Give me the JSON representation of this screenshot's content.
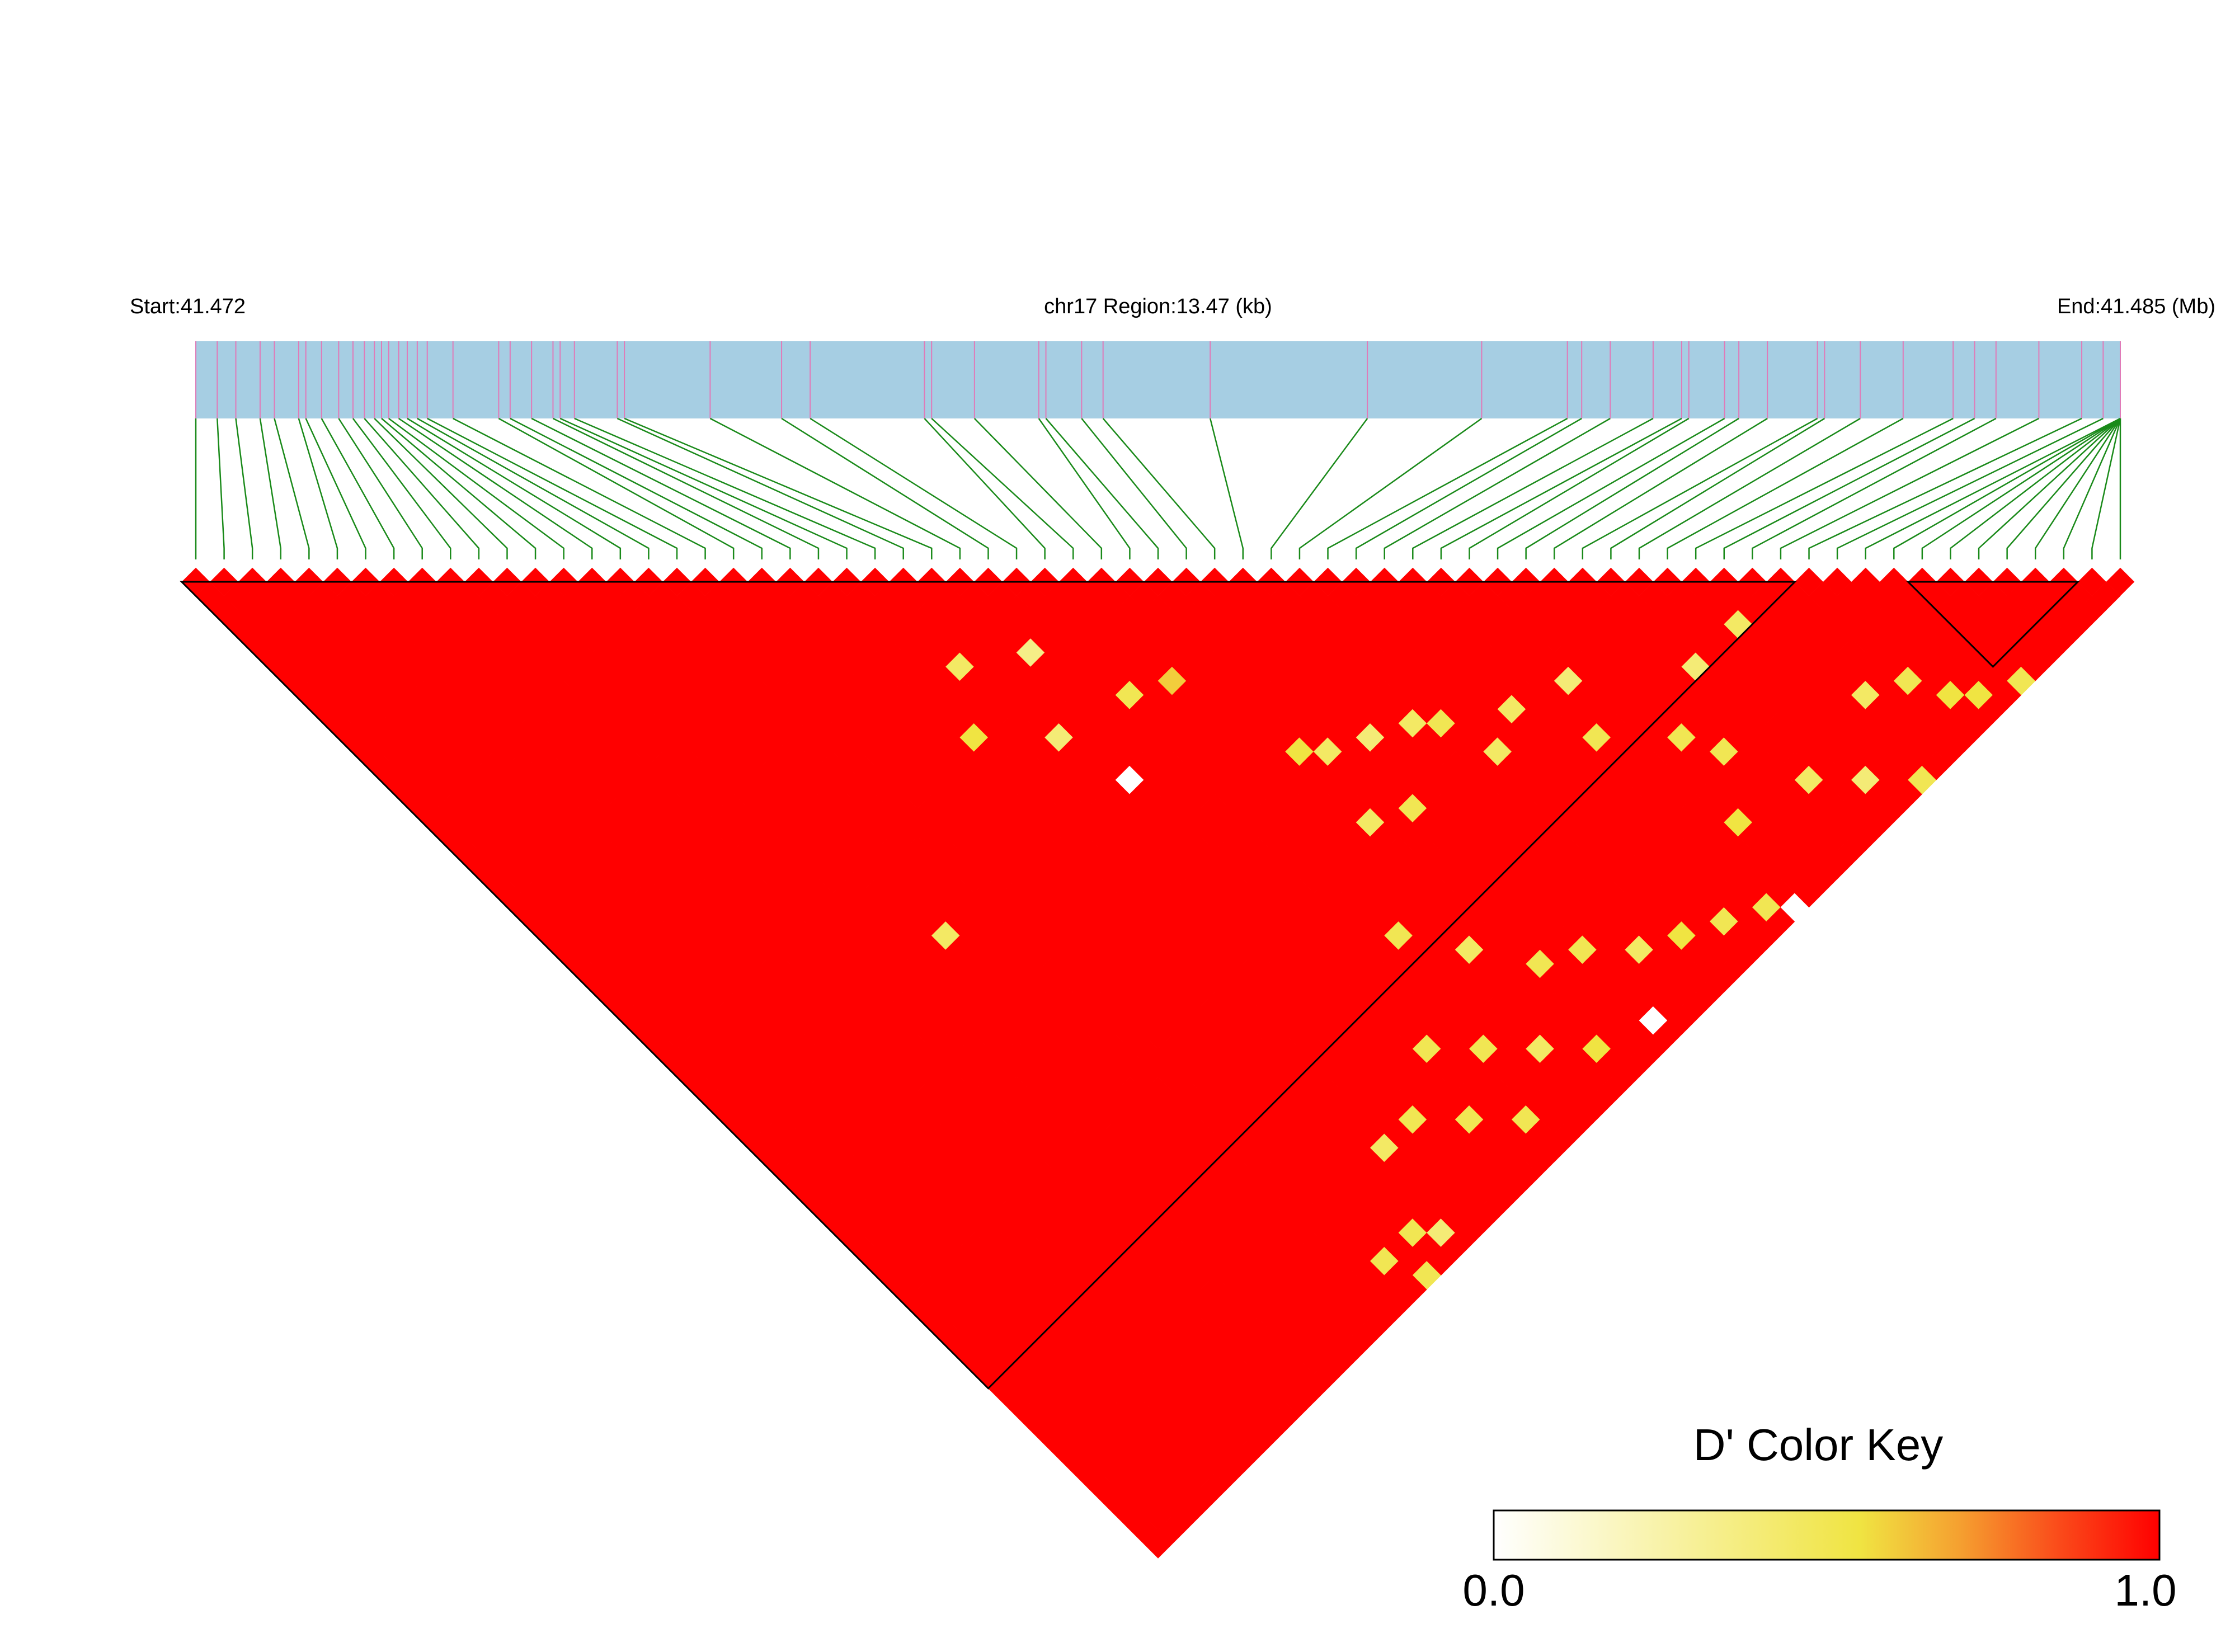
{
  "header": {
    "start_label": "Start:41.472",
    "region_label": "chr17 Region:13.47 (kb)",
    "end_label": "End:41.485 (Mb)"
  },
  "colors": {
    "track_fill": "#a6cee3",
    "snp_tick": "#e07ab8",
    "connector": "#1a8a1a",
    "ld_high": "#ff0000",
    "ld_mid": "#f0e442",
    "ld_low": "#ffffff",
    "block_outline": "#000000"
  },
  "legend": {
    "title": "D' Color Key",
    "min_label": "0.0",
    "max_label": "1.0"
  },
  "chart_data": {
    "type": "heatmap",
    "description_type": "linkage-disequilibrium triangle",
    "region": {
      "chromosome": "chr17",
      "start_mb": 41.472,
      "end_mb": 41.485,
      "length_kb": 13.47
    },
    "color_scale": {
      "metric": "D'",
      "min": 0.0,
      "max": 1.0
    },
    "n_snps": 69,
    "snp_positions_kb": [
      0.0,
      0.15,
      0.28,
      0.45,
      0.55,
      0.72,
      0.77,
      0.88,
      1.0,
      1.1,
      1.18,
      1.25,
      1.3,
      1.35,
      1.42,
      1.48,
      1.55,
      1.62,
      1.8,
      2.12,
      2.2,
      2.35,
      2.5,
      2.55,
      2.65,
      2.95,
      3.0,
      3.6,
      4.1,
      4.3,
      5.1,
      5.15,
      5.45,
      5.9,
      5.95,
      6.2,
      6.35,
      7.1,
      8.2,
      9.0,
      9.6,
      9.7,
      9.9,
      10.2,
      10.4,
      10.45,
      10.7,
      10.8,
      11.0,
      11.35,
      11.4,
      11.65,
      11.95,
      12.3,
      12.45,
      12.6,
      12.9,
      13.2,
      13.35,
      13.47,
      13.47,
      13.47,
      13.47,
      13.47,
      13.47,
      13.47,
      13.47,
      13.47,
      13.47
    ],
    "ld_blocks": [
      {
        "first_snp": 1,
        "last_snp": 57
      },
      {
        "first_snp": 62,
        "last_snp": 67
      }
    ],
    "low_dprime_cells": [
      {
        "i": 24,
        "j": 30,
        "dprime": 0.45
      },
      {
        "i": 27,
        "j": 32,
        "dprime": 0.35
      },
      {
        "i": 29,
        "j": 37,
        "dprime": 0.5
      },
      {
        "i": 53,
        "j": 56,
        "dprime": 0.45
      },
      {
        "i": 22,
        "j": 33,
        "dprime": 0.55
      },
      {
        "i": 50,
        "j": 56,
        "dprime": 0.4
      },
      {
        "i": 25,
        "j": 36,
        "dprime": 0.4
      },
      {
        "i": 31,
        "j": 38,
        "dprime": 0.6
      },
      {
        "i": 45,
        "j": 52,
        "dprime": 0.4
      },
      {
        "i": 26,
        "j": 40,
        "dprime": 0.0
      },
      {
        "i": 14,
        "j": 39,
        "dprime": 0.45
      },
      {
        "i": 33,
        "j": 45,
        "dprime": 0.55
      },
      {
        "i": 42,
        "j": 51,
        "dprime": 0.45
      },
      {
        "i": 39,
        "j": 49,
        "dprime": 0.5
      },
      {
        "i": 34,
        "j": 46,
        "dprime": 0.45
      },
      {
        "i": 36,
        "j": 47,
        "dprime": 0.4
      },
      {
        "i": 38,
        "j": 48,
        "dprime": 0.45
      },
      {
        "i": 33,
        "j": 50,
        "dprime": 0.45
      },
      {
        "i": 35,
        "j": 51,
        "dprime": 0.5
      },
      {
        "i": 40,
        "j": 52,
        "dprime": 0.45
      },
      {
        "i": 44,
        "j": 55,
        "dprime": 0.5
      },
      {
        "i": 47,
        "j": 58,
        "dprime": 0.5
      },
      {
        "i": 48,
        "j": 60,
        "dprime": 0.5
      },
      {
        "i": 55,
        "j": 63,
        "dprime": 0.45
      },
      {
        "i": 57,
        "j": 64,
        "dprime": 0.5
      },
      {
        "i": 58,
        "j": 66,
        "dprime": 0.55
      },
      {
        "i": 59,
        "j": 67,
        "dprime": 0.55
      },
      {
        "i": 61,
        "j": 68,
        "dprime": 0.5
      },
      {
        "i": 30,
        "j": 55,
        "dprime": 0.5
      },
      {
        "i": 32,
        "j": 58,
        "dprime": 0.45
      },
      {
        "i": 36,
        "j": 62,
        "dprime": 0.5
      },
      {
        "i": 34,
        "j": 61,
        "dprime": 0.5
      },
      {
        "i": 38,
        "j": 64,
        "dprime": 0.45
      },
      {
        "i": 40,
        "j": 65,
        "dprime": 0.55
      },
      {
        "i": 42,
        "j": 66,
        "dprime": 0.5
      },
      {
        "i": 44,
        "j": 67,
        "dprime": 0.5
      },
      {
        "i": 27,
        "j": 60,
        "dprime": 0.5
      },
      {
        "i": 29,
        "j": 62,
        "dprime": 0.5
      },
      {
        "i": 31,
        "j": 64,
        "dprime": 0.45
      },
      {
        "i": 33,
        "j": 66,
        "dprime": 0.55
      },
      {
        "i": 24,
        "j": 62,
        "dprime": 0.5
      },
      {
        "i": 26,
        "j": 64,
        "dprime": 0.5
      },
      {
        "i": 28,
        "j": 66,
        "dprime": 0.5
      },
      {
        "i": 22,
        "j": 62,
        "dprime": 0.45
      },
      {
        "i": 20,
        "j": 66,
        "dprime": 0.5
      },
      {
        "i": 21,
        "j": 67,
        "dprime": 0.4
      },
      {
        "i": 18,
        "j": 66,
        "dprime": 0.5
      },
      {
        "i": 19,
        "j": 68,
        "dprime": 0.5
      },
      {
        "i": 36,
        "j": 67,
        "dprime": 0.0
      },
      {
        "i": 45,
        "j": 68,
        "dprime": 0.0
      },
      {
        "i": 50,
        "j": 64,
        "dprime": 0.45
      },
      {
        "i": 52,
        "j": 66,
        "dprime": 0.4
      },
      {
        "i": 46,
        "j": 63,
        "dprime": 0.55
      },
      {
        "i": 54,
        "j": 68,
        "dprime": 0.5
      }
    ],
    "default_dprime": 1.0
  }
}
